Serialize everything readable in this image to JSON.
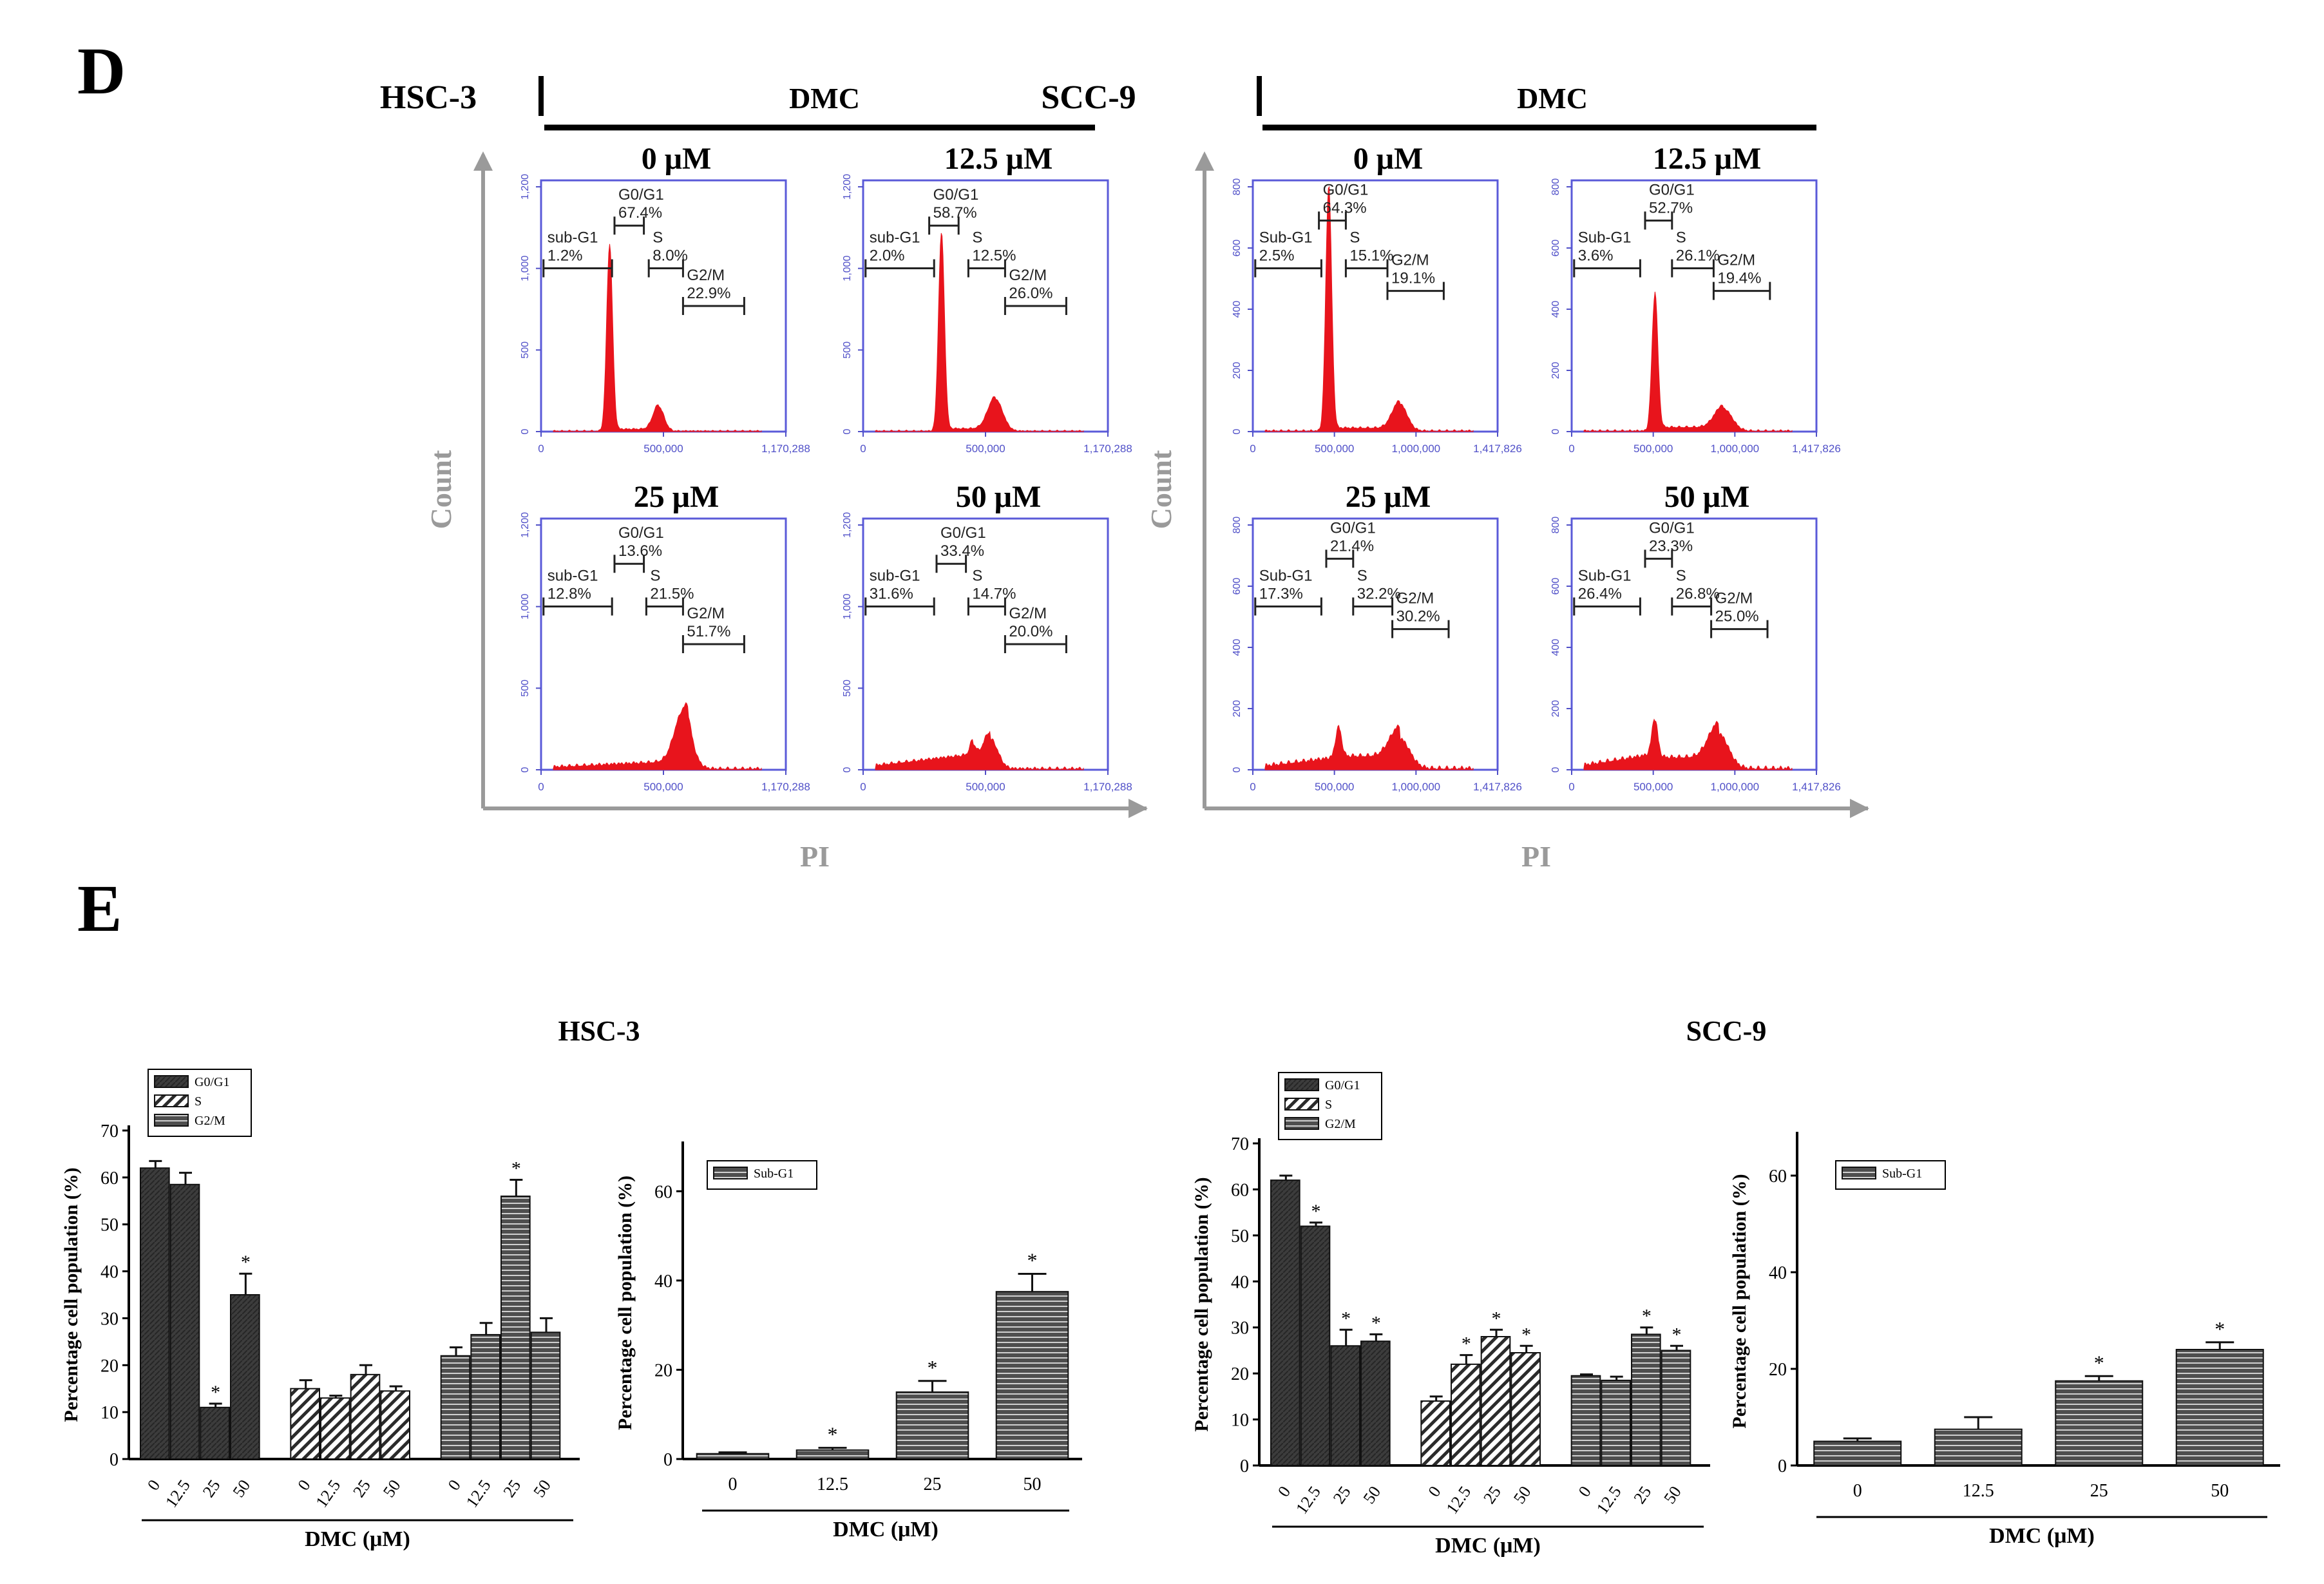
{
  "panel_labels": {
    "d": "D",
    "e": "E"
  },
  "flow": {
    "drug_label": "DMC",
    "y_label": "Count",
    "x_label": "PI",
    "colors": {
      "histogram": "#e8141c",
      "frame": "#5a5ad8",
      "tick": "#5050c8",
      "axis": "#9a9a9a",
      "gate": "#222222"
    },
    "cell_lines": [
      {
        "name": "HSC-3",
        "x_tick_labels": [
          "0",
          "500,000",
          "1,170,288"
        ],
        "y_tick_labels": [
          "0",
          "500",
          "1,000",
          "1,200"
        ],
        "plots": [
          {
            "dose": "0 μM",
            "shape": "hsc_0",
            "gates": [
              {
                "label": "sub-G1",
                "value": "1.2%"
              },
              {
                "label": "G0/G1",
                "value": "67.4%"
              },
              {
                "label": "S",
                "value": "8.0%"
              },
              {
                "label": "G2/M",
                "value": "22.9%"
              }
            ]
          },
          {
            "dose": "12.5 μM",
            "shape": "hsc_12",
            "gates": [
              {
                "label": "sub-G1",
                "value": "2.0%"
              },
              {
                "label": "G0/G1",
                "value": "58.7%"
              },
              {
                "label": "S",
                "value": "12.5%"
              },
              {
                "label": "G2/M",
                "value": "26.0%"
              }
            ]
          },
          {
            "dose": "25 μM",
            "shape": "hsc_25",
            "gates": [
              {
                "label": "sub-G1",
                "value": "12.8%"
              },
              {
                "label": "G0/G1",
                "value": "13.6%"
              },
              {
                "label": "S",
                "value": "21.5%"
              },
              {
                "label": "G2/M",
                "value": "51.7%"
              }
            ]
          },
          {
            "dose": "50 μM",
            "shape": "hsc_50",
            "gates": [
              {
                "label": "sub-G1",
                "value": "31.6%"
              },
              {
                "label": "G0/G1",
                "value": "33.4%"
              },
              {
                "label": "S",
                "value": "14.7%"
              },
              {
                "label": "G2/M",
                "value": "20.0%"
              }
            ]
          }
        ]
      },
      {
        "name": "SCC-9",
        "x_tick_labels": [
          "0",
          "500,000",
          "1,000,000",
          "1,417,826"
        ],
        "y_tick_labels": [
          "0",
          "200",
          "400",
          "600",
          "800"
        ],
        "plots": [
          {
            "dose": "0 μM",
            "shape": "scc_0",
            "gates": [
              {
                "label": "Sub-G1",
                "value": "2.5%"
              },
              {
                "label": "G0/G1",
                "value": "64.3%"
              },
              {
                "label": "S",
                "value": "15.1%"
              },
              {
                "label": "G2/M",
                "value": "19.1%"
              }
            ]
          },
          {
            "dose": "12.5 μM",
            "shape": "scc_12",
            "gates": [
              {
                "label": "Sub-G1",
                "value": "3.6%"
              },
              {
                "label": "G0/G1",
                "value": "52.7%"
              },
              {
                "label": "S",
                "value": "26.1%"
              },
              {
                "label": "G2/M",
                "value": "19.4%"
              }
            ]
          },
          {
            "dose": "25 μM",
            "shape": "scc_25",
            "gates": [
              {
                "label": "Sub-G1",
                "value": "17.3%"
              },
              {
                "label": "G0/G1",
                "value": "21.4%"
              },
              {
                "label": "S",
                "value": "32.2%"
              },
              {
                "label": "G2/M",
                "value": "30.2%"
              }
            ]
          },
          {
            "dose": "50 μM",
            "shape": "scc_50",
            "gates": [
              {
                "label": "Sub-G1",
                "value": "26.4%"
              },
              {
                "label": "G0/G1",
                "value": "23.3%"
              },
              {
                "label": "S",
                "value": "26.8%"
              },
              {
                "label": "G2/M",
                "value": "25.0%"
              }
            ]
          }
        ]
      }
    ]
  },
  "chart_data": [
    {
      "type": "bar",
      "panel": "HSC-3",
      "title": "HSC-3",
      "ylabel": "Percentage cell population (%)",
      "xlabel": "DMC (μM)",
      "ylim": [
        0,
        70
      ],
      "yticks": [
        0,
        10,
        20,
        30,
        40,
        50,
        60,
        70
      ],
      "categories": [
        "0",
        "12.5",
        "25",
        "50"
      ],
      "series": [
        {
          "name": "G0/G1",
          "pattern": "solid",
          "values": [
            62,
            58.5,
            11,
            35
          ],
          "errors": [
            1.5,
            2.5,
            0.8,
            4.5
          ],
          "significant": [
            false,
            false,
            true,
            true
          ]
        },
        {
          "name": "S",
          "pattern": "diagonal",
          "values": [
            15,
            13,
            18,
            14.5
          ],
          "errors": [
            1.8,
            0.5,
            2,
            1
          ],
          "significant": [
            false,
            false,
            false,
            false
          ]
        },
        {
          "name": "G2/M",
          "pattern": "horizontal",
          "values": [
            22,
            26.5,
            56,
            27
          ],
          "errors": [
            1.8,
            2.5,
            3.5,
            3
          ],
          "significant": [
            false,
            false,
            true,
            false
          ]
        }
      ]
    },
    {
      "type": "bar",
      "panel": "HSC-3",
      "title": "",
      "ylabel": "Percentage cell population (%)",
      "xlabel": "DMC (μM)",
      "ylim": [
        0,
        70
      ],
      "yticks": [
        0,
        20,
        40,
        60
      ],
      "categories": [
        "0",
        "12.5",
        "25",
        "50"
      ],
      "series": [
        {
          "name": "Sub-G1",
          "pattern": "horizontal",
          "values": [
            1.2,
            2,
            15,
            37.5
          ],
          "errors": [
            0.3,
            0.5,
            2.5,
            4
          ],
          "significant": [
            false,
            true,
            true,
            true
          ]
        }
      ]
    },
    {
      "type": "bar",
      "panel": "SCC-9",
      "title": "SCC-9",
      "ylabel": "Percentage cell population (%)",
      "xlabel": "DMC (μM)",
      "ylim": [
        0,
        70
      ],
      "yticks": [
        0,
        10,
        20,
        30,
        40,
        50,
        60,
        70
      ],
      "categories": [
        "0",
        "12.5",
        "25",
        "50"
      ],
      "series": [
        {
          "name": "G0/G1",
          "pattern": "solid",
          "values": [
            62,
            52,
            26,
            27
          ],
          "errors": [
            1,
            0.8,
            3.5,
            1.5
          ],
          "significant": [
            false,
            true,
            true,
            true
          ]
        },
        {
          "name": "S",
          "pattern": "diagonal",
          "values": [
            14,
            22,
            28,
            24.5
          ],
          "errors": [
            1,
            2,
            1.5,
            1.5
          ],
          "significant": [
            false,
            true,
            true,
            true
          ]
        },
        {
          "name": "G2/M",
          "pattern": "horizontal",
          "values": [
            19.5,
            18.5,
            28.5,
            25
          ],
          "errors": [
            0.3,
            0.8,
            1.5,
            1
          ],
          "significant": [
            false,
            false,
            true,
            true
          ]
        }
      ]
    },
    {
      "type": "bar",
      "panel": "SCC-9",
      "title": "",
      "ylabel": "Percentage cell population (%)",
      "xlabel": "DMC (μM)",
      "ylim": [
        0,
        68
      ],
      "yticks": [
        0,
        20,
        40,
        60
      ],
      "categories": [
        "0",
        "12.5",
        "25",
        "50"
      ],
      "series": [
        {
          "name": "Sub-G1",
          "pattern": "horizontal",
          "values": [
            5,
            7.5,
            17.5,
            24
          ],
          "errors": [
            0.6,
            2.5,
            1,
            1.5
          ],
          "significant": [
            false,
            false,
            true,
            true
          ]
        }
      ]
    }
  ]
}
